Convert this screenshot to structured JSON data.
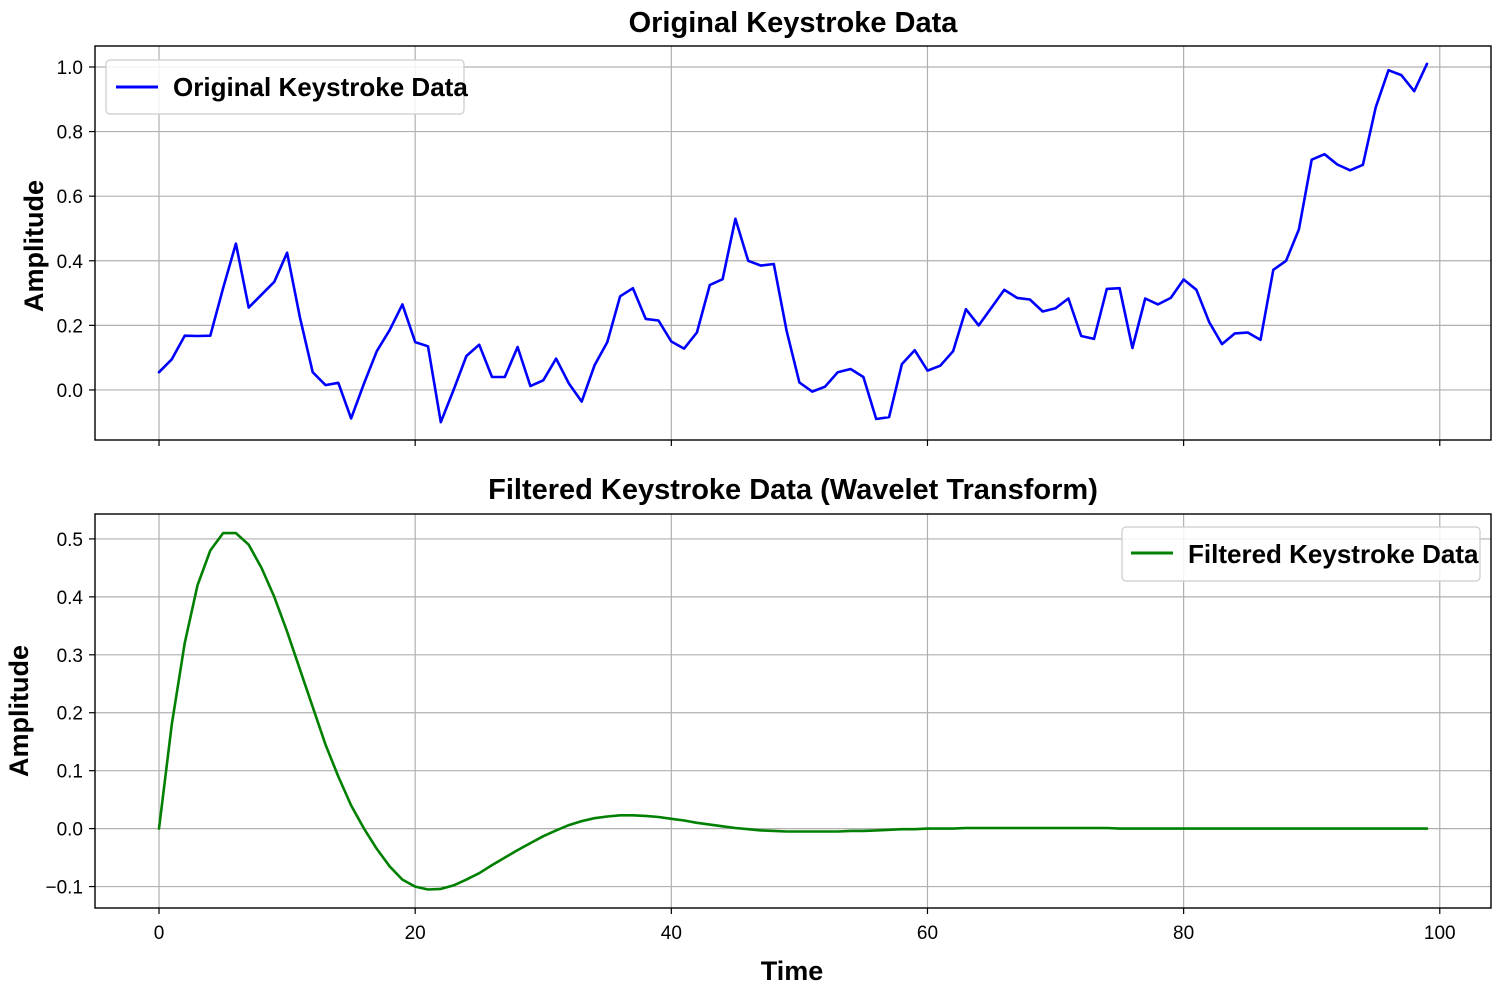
{
  "chart_data": [
    {
      "type": "line",
      "title": "Original Keystroke Data",
      "ylabel": "Amplitude",
      "xlabel": "",
      "xlim": [
        -5,
        104
      ],
      "ylim": [
        -0.155,
        1.065
      ],
      "xticks": [
        0,
        20,
        40,
        60,
        80,
        100
      ],
      "xtick_labels_visible": false,
      "yticks": [
        0.0,
        0.2,
        0.4,
        0.6,
        0.8,
        1.0
      ],
      "ytick_labels": [
        "0.0",
        "0.2",
        "0.4",
        "0.6",
        "0.8",
        "1.0"
      ],
      "grid": true,
      "legend": "upper left",
      "color": "#0000ff",
      "series": [
        {
          "name": "Original Keystroke Data",
          "x": [
            0,
            1,
            2,
            3,
            4,
            5,
            6,
            7,
            8,
            9,
            10,
            11,
            12,
            13,
            14,
            15,
            16,
            17,
            18,
            19,
            20,
            21,
            22,
            23,
            24,
            25,
            26,
            27,
            28,
            29,
            30,
            31,
            32,
            33,
            34,
            35,
            36,
            37,
            38,
            39,
            40,
            41,
            42,
            43,
            44,
            45,
            46,
            47,
            48,
            49,
            50,
            51,
            52,
            53,
            54,
            55,
            56,
            57,
            58,
            59,
            60,
            61,
            62,
            63,
            64,
            65,
            66,
            67,
            68,
            69,
            70,
            71,
            72,
            73,
            74,
            75,
            76,
            77,
            78,
            79,
            80,
            81,
            82,
            83,
            84,
            85,
            86,
            87,
            88,
            89,
            90,
            91,
            92,
            93,
            94,
            95,
            96,
            97,
            98,
            99
          ],
          "values": [
            0.055,
            0.095,
            0.168,
            0.167,
            0.168,
            0.315,
            0.453,
            0.255,
            0.295,
            0.335,
            0.425,
            0.225,
            0.055,
            0.015,
            0.022,
            -0.088,
            0.02,
            0.12,
            0.185,
            0.265,
            0.148,
            0.135,
            -0.1,
            0.0,
            0.105,
            0.14,
            0.04,
            0.04,
            0.133,
            0.012,
            0.03,
            0.097,
            0.02,
            -0.036,
            0.076,
            0.148,
            0.29,
            0.315,
            0.22,
            0.215,
            0.15,
            0.128,
            0.178,
            0.325,
            0.343,
            0.53,
            0.4,
            0.385,
            0.39,
            0.183,
            0.023,
            -0.005,
            0.01,
            0.055,
            0.065,
            0.04,
            -0.09,
            -0.084,
            0.08,
            0.123,
            0.06,
            0.075,
            0.12,
            0.25,
            0.2,
            0.255,
            0.31,
            0.285,
            0.28,
            0.243,
            0.253,
            0.283,
            0.167,
            0.158,
            0.313,
            0.315,
            0.13,
            0.283,
            0.265,
            0.285,
            0.342,
            0.31,
            0.21,
            0.142,
            0.175,
            0.178,
            0.155,
            0.372,
            0.4,
            0.497,
            0.713,
            0.73,
            0.698,
            0.68,
            0.697,
            0.875,
            0.99,
            0.975,
            0.925,
            1.01
          ]
        }
      ]
    },
    {
      "type": "line",
      "title": "Filtered Keystroke Data (Wavelet Transform)",
      "ylabel": "Amplitude",
      "xlabel": "Time",
      "xlim": [
        -5,
        104
      ],
      "ylim": [
        -0.137,
        0.543
      ],
      "xticks": [
        0,
        20,
        40,
        60,
        80,
        100
      ],
      "xtick_labels": [
        "0",
        "20",
        "40",
        "60",
        "80",
        "100"
      ],
      "yticks": [
        -0.1,
        0.0,
        0.1,
        0.2,
        0.3,
        0.4,
        0.5
      ],
      "ytick_labels": [
        "−0.1",
        "0.0",
        "0.1",
        "0.2",
        "0.3",
        "0.4",
        "0.5"
      ],
      "grid": true,
      "legend": "upper right",
      "color": "#008000",
      "series": [
        {
          "name": "Filtered Keystroke Data",
          "x": [
            0,
            1,
            2,
            3,
            4,
            5,
            6,
            7,
            8,
            9,
            10,
            11,
            12,
            13,
            14,
            15,
            16,
            17,
            18,
            19,
            20,
            21,
            22,
            23,
            24,
            25,
            26,
            27,
            28,
            29,
            30,
            31,
            32,
            33,
            34,
            35,
            36,
            37,
            38,
            39,
            40,
            41,
            42,
            43,
            44,
            45,
            46,
            47,
            48,
            49,
            50,
            51,
            52,
            53,
            54,
            55,
            56,
            57,
            58,
            59,
            60,
            61,
            62,
            63,
            64,
            65,
            66,
            67,
            68,
            69,
            70,
            71,
            72,
            73,
            74,
            75,
            76,
            77,
            78,
            79,
            80,
            81,
            82,
            83,
            84,
            85,
            86,
            87,
            88,
            89,
            90,
            91,
            92,
            93,
            94,
            95,
            96,
            97,
            98,
            99
          ],
          "values": [
            0.0,
            0.18,
            0.32,
            0.42,
            0.48,
            0.51,
            0.51,
            0.49,
            0.45,
            0.4,
            0.34,
            0.275,
            0.21,
            0.145,
            0.09,
            0.04,
            0.0,
            -0.035,
            -0.065,
            -0.088,
            -0.1,
            -0.105,
            -0.104,
            -0.098,
            -0.088,
            -0.077,
            -0.063,
            -0.05,
            -0.037,
            -0.025,
            -0.013,
            -0.003,
            0.006,
            0.013,
            0.018,
            0.021,
            0.023,
            0.023,
            0.022,
            0.02,
            0.017,
            0.014,
            0.01,
            0.007,
            0.004,
            0.001,
            -0.001,
            -0.003,
            -0.004,
            -0.005,
            -0.005,
            -0.005,
            -0.005,
            -0.005,
            -0.004,
            -0.004,
            -0.003,
            -0.002,
            -0.001,
            -0.001,
            0.0,
            0.0,
            0.0,
            0.001,
            0.001,
            0.001,
            0.001,
            0.001,
            0.001,
            0.001,
            0.001,
            0.001,
            0.001,
            0.001,
            0.001,
            0.0,
            0.0,
            0.0,
            0.0,
            0.0,
            0.0,
            0.0,
            0.0,
            0.0,
            0.0,
            0.0,
            0.0,
            0.0,
            0.0,
            0.0,
            0.0,
            0.0,
            0.0,
            0.0,
            0.0,
            0.0,
            0.0,
            0.0,
            0.0,
            0.0
          ]
        }
      ]
    }
  ]
}
